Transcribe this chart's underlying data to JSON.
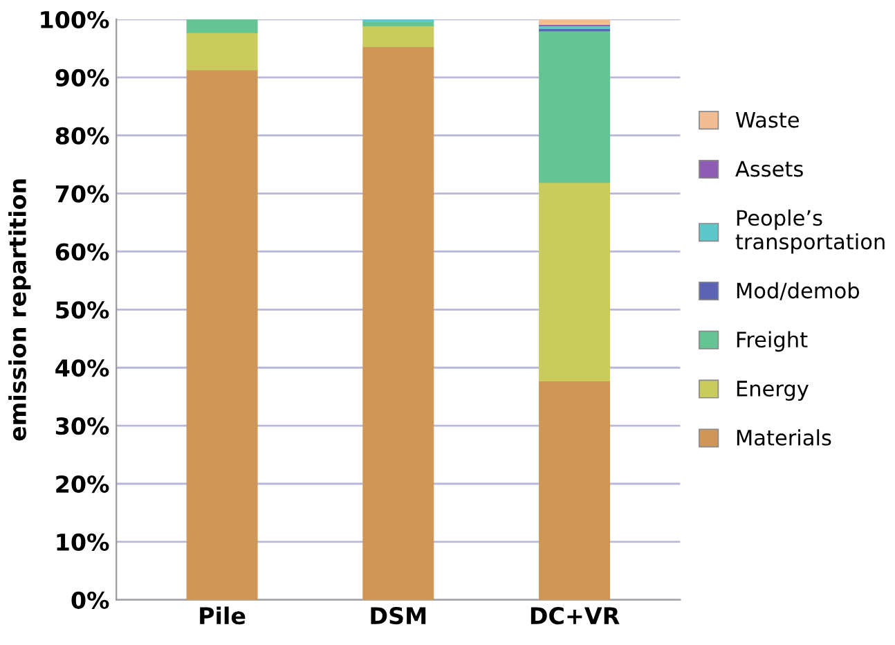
{
  "chart_data": {
    "type": "bar",
    "stacked": true,
    "ylabel": "emission repartition",
    "categories": [
      "Pile",
      "DSM",
      "DC+VR"
    ],
    "series": [
      {
        "name": "Materials",
        "color": "#cf9757",
        "values": [
          91.3,
          95.3,
          37.7
        ]
      },
      {
        "name": "Energy",
        "color": "#c9cb5c",
        "values": [
          6.4,
          3.6,
          34.2
        ]
      },
      {
        "name": "Freight",
        "color": "#66c394",
        "values": [
          2.3,
          0.7,
          26.1
        ]
      },
      {
        "name": "Mod/demob",
        "color": "#5c63b5",
        "values": [
          null,
          null,
          0.4
        ]
      },
      {
        "name": "People’s transportation",
        "color": "#5dc8cc",
        "values": [
          null,
          0.4,
          0.5
        ]
      },
      {
        "name": "Assets",
        "color": "#8e5cb3",
        "values": [
          null,
          null,
          0.2
        ]
      },
      {
        "name": "Waste",
        "color": "#f2bd93",
        "values": [
          null,
          null,
          0.9
        ]
      }
    ],
    "ylim": [
      0,
      100
    ],
    "yticks": [
      {
        "value": 0,
        "label": "0%"
      },
      {
        "value": 10,
        "label": "10%"
      },
      {
        "value": 20,
        "label": "20%"
      },
      {
        "value": 30,
        "label": "30%"
      },
      {
        "value": 40,
        "label": "40%"
      },
      {
        "value": 50,
        "label": "50%"
      },
      {
        "value": 60,
        "label": "60%"
      },
      {
        "value": 70,
        "label": "70%"
      },
      {
        "value": 80,
        "label": "80%"
      },
      {
        "value": 90,
        "label": "90%"
      },
      {
        "value": 100,
        "label": "100%"
      }
    ],
    "grid": "y",
    "legend": "right"
  }
}
